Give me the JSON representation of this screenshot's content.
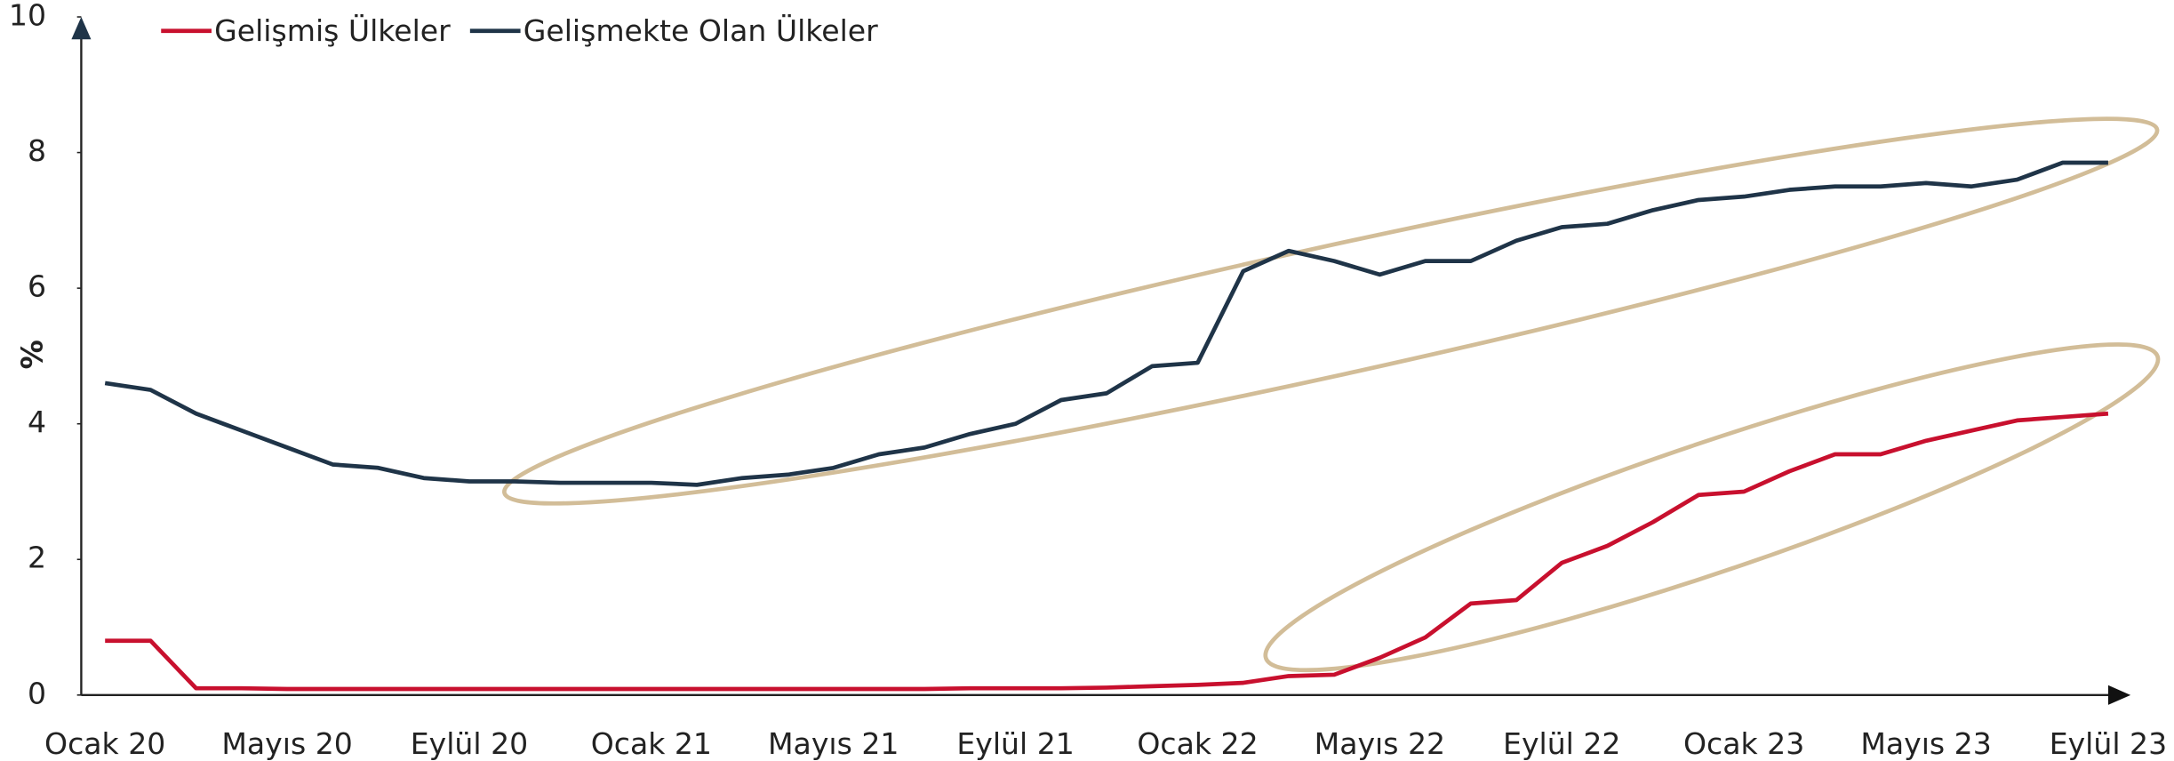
{
  "chart_data": {
    "type": "line",
    "y_label": "%",
    "categories": [
      "Ocak 20",
      null,
      null,
      null,
      "Mayıs 20",
      null,
      null,
      null,
      "Eylül 20",
      null,
      null,
      null,
      "Ocak 21",
      null,
      null,
      null,
      "Mayıs 21",
      null,
      null,
      null,
      "Eylül 21",
      null,
      null,
      null,
      "Ocak 22",
      null,
      null,
      null,
      "Mayıs 22",
      null,
      null,
      null,
      "Eylül 22",
      null,
      null,
      null,
      "Ocak 23",
      null,
      null,
      null,
      "Mayıs 23",
      null,
      null,
      null,
      "Eylül 23"
    ],
    "series": [
      {
        "name": "Gelişmiş Ülkeler",
        "color": "#c8102e",
        "values": [
          0.8,
          0.8,
          0.1,
          0.1,
          0.09,
          0.09,
          0.09,
          0.09,
          0.09,
          0.09,
          0.09,
          0.09,
          0.09,
          0.09,
          0.09,
          0.09,
          0.09,
          0.09,
          0.09,
          0.1,
          0.1,
          0.1,
          0.11,
          0.13,
          0.15,
          0.18,
          0.28,
          0.3,
          0.55,
          0.85,
          1.35,
          1.4,
          1.95,
          2.2,
          2.55,
          2.95,
          3.0,
          3.3,
          3.55,
          3.55,
          3.75,
          3.9,
          4.05,
          4.1,
          4.15
        ]
      },
      {
        "name": "Gelişmekte Olan Ülkeler",
        "color": "#1f3448",
        "values": [
          4.6,
          4.5,
          4.15,
          3.9,
          3.65,
          3.4,
          3.35,
          3.2,
          3.15,
          3.15,
          3.13,
          3.13,
          3.13,
          3.1,
          3.2,
          3.25,
          3.35,
          3.55,
          3.65,
          3.85,
          4.0,
          4.35,
          4.45,
          4.85,
          4.9,
          6.25,
          6.55,
          6.4,
          6.2,
          6.4,
          6.4,
          6.7,
          6.9,
          6.95,
          7.15,
          7.3,
          7.35,
          7.45,
          7.5,
          7.5,
          7.55,
          7.5,
          7.6,
          7.85,
          7.85
        ]
      }
    ],
    "ylim": [
      0,
      10
    ],
    "yticks": [
      0,
      2,
      4,
      6,
      8,
      10
    ],
    "grid": false,
    "legend": "top-left"
  }
}
